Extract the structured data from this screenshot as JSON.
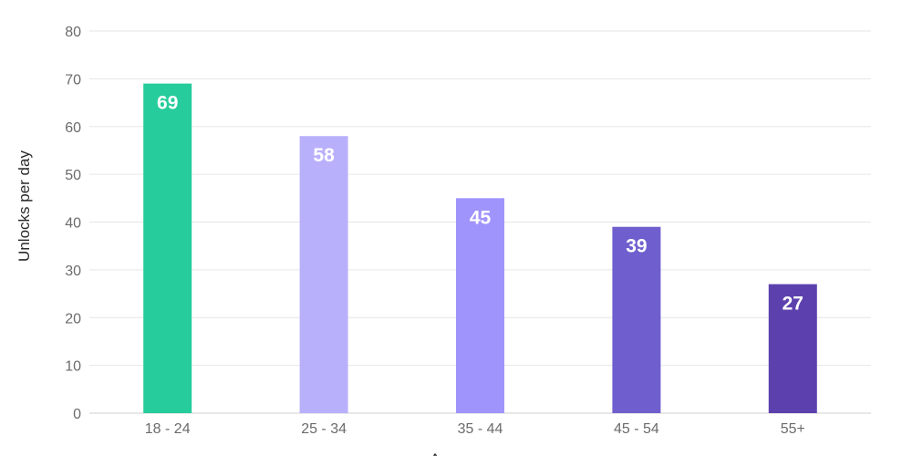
{
  "chart_data": {
    "type": "bar",
    "title": "",
    "xlabel": "A",
    "ylabel": "Unlocks per day",
    "categories": [
      "18 - 24",
      "25 - 34",
      "35 - 44",
      "45 - 54",
      "55+"
    ],
    "values": [
      69,
      58,
      45,
      39,
      27
    ],
    "bar_colors": [
      "#26cc9b",
      "#b9b0fc",
      "#9f94fb",
      "#6f5fce",
      "#5c41ae"
    ],
    "ylim": [
      0,
      80
    ],
    "yticks": [
      0,
      10,
      20,
      30,
      40,
      50,
      60,
      70,
      80
    ],
    "grid": true,
    "legend": "none"
  }
}
